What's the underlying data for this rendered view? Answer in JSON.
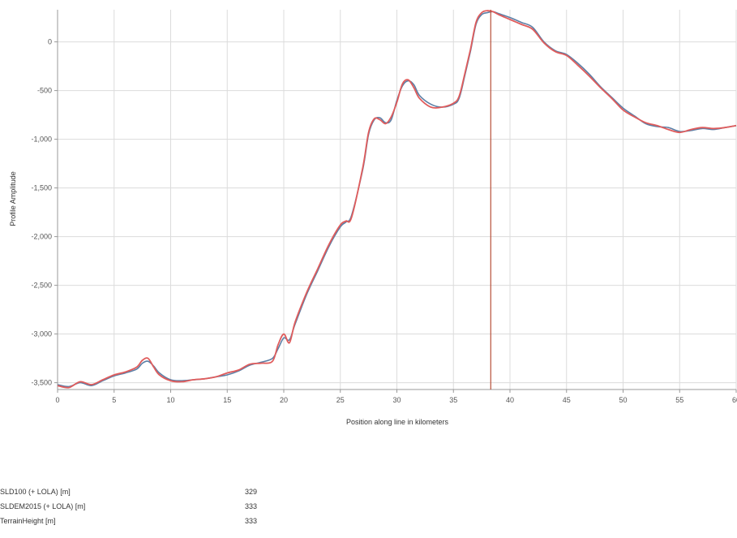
{
  "chart_data": {
    "type": "line",
    "title": "",
    "xlabel": "Position along line in kilometers",
    "ylabel": "Profile Amplitude",
    "xlim": [
      0,
      60
    ],
    "ylim": [
      -3570,
      330
    ],
    "xticks": [
      0,
      5,
      10,
      15,
      20,
      25,
      30,
      35,
      40,
      45,
      50,
      55,
      60
    ],
    "xtick_labels": [
      "0",
      "5",
      "10",
      "15",
      "20",
      "25",
      "30",
      "35",
      "40",
      "45",
      "50",
      "55",
      "60"
    ],
    "yticks": [
      0,
      -500,
      -1000,
      -1500,
      -2000,
      -2500,
      -3000,
      -3500
    ],
    "ytick_labels": [
      "0",
      "-500",
      "-1,000",
      "-1,500",
      "-2,000",
      "-2,500",
      "-3,000",
      "-3,500"
    ],
    "grid": true,
    "cursor_x": 38.3,
    "series": [
      {
        "color": "#5b7fa6",
        "x": [
          0,
          1,
          2,
          3,
          4,
          5,
          6,
          7,
          7.5,
          8,
          8.5,
          9,
          10,
          11,
          12,
          13,
          14,
          15,
          16,
          17,
          18,
          19,
          19.5,
          20,
          20.5,
          21,
          22,
          23,
          24,
          25,
          25.5,
          26,
          27,
          27.5,
          28,
          28.5,
          29,
          29.5,
          30,
          30.5,
          31,
          31.5,
          32,
          33,
          34,
          35,
          35.5,
          36,
          36.5,
          37,
          37.5,
          38,
          38.5,
          39,
          40,
          41,
          42,
          43,
          44,
          45,
          46,
          47,
          48,
          49,
          50,
          51,
          52,
          53,
          54,
          55,
          56,
          57,
          58,
          59,
          60
        ],
        "y": [
          -3520,
          -3540,
          -3500,
          -3530,
          -3480,
          -3430,
          -3400,
          -3360,
          -3300,
          -3280,
          -3330,
          -3400,
          -3470,
          -3480,
          -3470,
          -3460,
          -3440,
          -3420,
          -3380,
          -3320,
          -3290,
          -3250,
          -3150,
          -3040,
          -3060,
          -2900,
          -2600,
          -2350,
          -2100,
          -1900,
          -1850,
          -1780,
          -1300,
          -950,
          -800,
          -780,
          -830,
          -800,
          -600,
          -450,
          -400,
          -440,
          -550,
          -640,
          -670,
          -640,
          -580,
          -350,
          -100,
          180,
          280,
          300,
          310,
          290,
          250,
          200,
          150,
          0,
          -90,
          -130,
          -220,
          -330,
          -460,
          -570,
          -680,
          -760,
          -840,
          -870,
          -880,
          -920,
          -910,
          -890,
          -900,
          -880,
          -860
        ]
      },
      {
        "color": "#e05c5c",
        "x": [
          0,
          1,
          2,
          3,
          4,
          5,
          6,
          7,
          7.5,
          8,
          8.5,
          9,
          10,
          11,
          12,
          13,
          14,
          15,
          16,
          17,
          18,
          19,
          19.5,
          20,
          20.5,
          21,
          22,
          23,
          24,
          25,
          25.5,
          26,
          27,
          27.5,
          28,
          28.5,
          29,
          29.5,
          30,
          30.5,
          31,
          31.5,
          32,
          33,
          34,
          35,
          35.5,
          36,
          36.5,
          37,
          37.5,
          38,
          38.5,
          39,
          40,
          41,
          42,
          43,
          44,
          45,
          46,
          47,
          48,
          49,
          50,
          51,
          52,
          53,
          54,
          55,
          56,
          57,
          58,
          59,
          60
        ],
        "y": [
          -3530,
          -3550,
          -3490,
          -3520,
          -3470,
          -3420,
          -3390,
          -3340,
          -3270,
          -3250,
          -3340,
          -3420,
          -3480,
          -3490,
          -3470,
          -3460,
          -3440,
          -3400,
          -3370,
          -3310,
          -3300,
          -3280,
          -3110,
          -3000,
          -3090,
          -2880,
          -2580,
          -2330,
          -2080,
          -1880,
          -1840,
          -1800,
          -1280,
          -930,
          -790,
          -800,
          -840,
          -770,
          -620,
          -430,
          -390,
          -470,
          -580,
          -670,
          -670,
          -630,
          -560,
          -330,
          -80,
          200,
          300,
          320,
          310,
          280,
          230,
          180,
          130,
          -10,
          -100,
          -140,
          -240,
          -350,
          -470,
          -580,
          -700,
          -770,
          -830,
          -860,
          -900,
          -930,
          -900,
          -880,
          -890,
          -880,
          -860
        ]
      }
    ]
  },
  "readout": [
    {
      "name": "SLD100 (+ LOLA) [m]",
      "value": "329"
    },
    {
      "name": "SLDEM2015 (+ LOLA) [m]",
      "value": "333"
    },
    {
      "name": "TerrainHeight [m]",
      "value": "333"
    }
  ]
}
